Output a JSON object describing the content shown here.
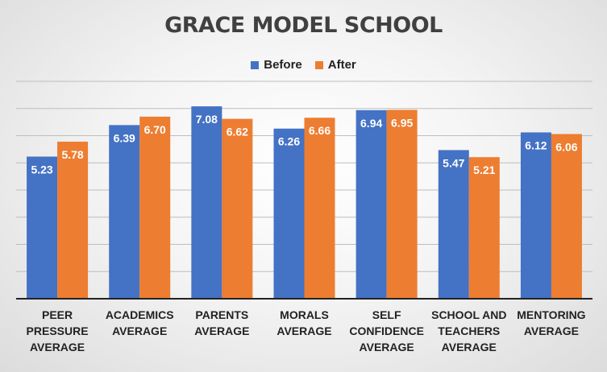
{
  "chart_data": {
    "type": "bar",
    "title": "GRACE MODEL SCHOOL",
    "categories": [
      "PEER PRESSURE AVERAGE",
      "ACADEMICS AVERAGE",
      "PARENTS AVERAGE",
      "MORALS AVERAGE",
      "SELF CONFIDENCE AVERAGE",
      "SCHOOL AND TEACHERS AVERAGE",
      "MENTORING AVERAGE"
    ],
    "category_display": [
      "PEER\nPRESSURE\nAVERAGE",
      "ACADEMICS\nAVERAGE",
      "PARENTS\nAVERAGE",
      "MORALS\nAVERAGE",
      "SELF\nCONFIDENCE\nAVERAGE",
      "SCHOOL AND\nTEACHERS\nAVERAGE",
      "MENTORING\nAVERAGE"
    ],
    "series": [
      {
        "name": "Before",
        "color": "#4472C4",
        "values": [
          5.23,
          6.39,
          7.08,
          6.26,
          6.94,
          5.47,
          6.12
        ]
      },
      {
        "name": "After",
        "color": "#ED7D31",
        "values": [
          5.78,
          6.7,
          6.62,
          6.66,
          6.95,
          5.21,
          6.06
        ]
      }
    ],
    "data_labels": {
      "Before": [
        "5.23",
        "6.39",
        "7.08",
        "6.26",
        "6.94",
        "5.47",
        "6.12"
      ],
      "After": [
        "5.78",
        "6.70",
        "6.62",
        "6.66",
        "6.95",
        "5.21",
        "6.06"
      ]
    },
    "xlabel": "",
    "ylabel": "",
    "ylim": [
      0,
      8
    ],
    "grid": true,
    "y_tick_labels_shown": false,
    "legend_position": "top-center"
  }
}
